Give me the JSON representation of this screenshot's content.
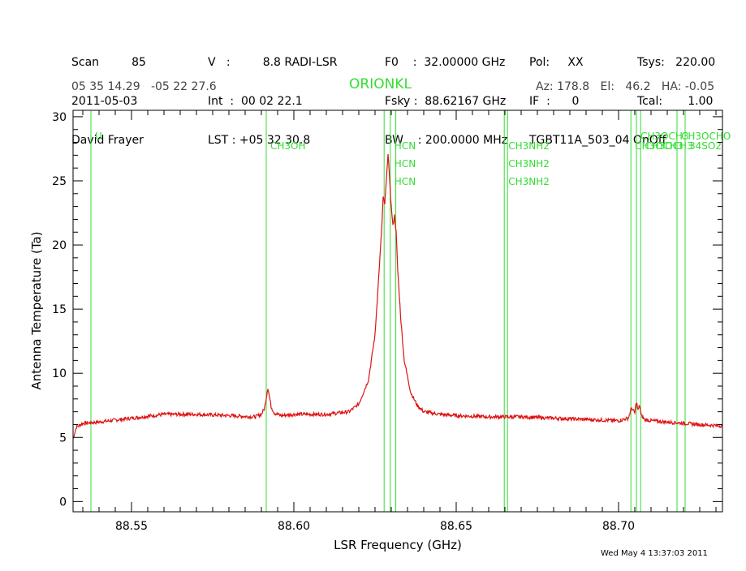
{
  "header": {
    "col1": [
      "Scan         85",
      "2011-05-03",
      "David Frayer"
    ],
    "col2": [
      "V   :         8.8 RADI-LSR",
      "Int  :  00 02 22.1",
      "LST : +05 32 30.8"
    ],
    "col3": [
      "F0    :  32.00000 GHz",
      "Fsky :  88.62167 GHz",
      "BW    : 200.0000 MHz"
    ],
    "col4": [
      "Pol:     XX",
      "IF  :      0",
      "TGBT11A_503_04 OnOff"
    ],
    "col5": [
      "Tsys:   220.00",
      "Tcal:       1.00",
      ""
    ],
    "coords": "05 35 14.29   -05 22 27.6",
    "source": "ORIONKL",
    "azel": "Az: 178.8   El:   46.2   HA: -0.05"
  },
  "footer": {
    "timestamp": "Wed May  4 13:37:03 2011"
  },
  "colors": {
    "spectrum": "#dd1111",
    "lines": "#33dd33",
    "axes": "#000000"
  },
  "chart_data": {
    "type": "line",
    "xlabel": "LSR Frequency (GHz)",
    "ylabel": "Antenna Temperature (Ta)",
    "xlim": [
      88.532,
      88.732
    ],
    "ylim": [
      -0.8,
      30.5
    ],
    "xticks": [
      88.55,
      88.6,
      88.65,
      88.7
    ],
    "xtick_labels": [
      "88.55",
      "88.60",
      "88.65",
      "88.70"
    ],
    "yticks": [
      0,
      5,
      10,
      15,
      20,
      25,
      30
    ],
    "ytick_labels": [
      "0",
      "5",
      "10",
      "15",
      "20",
      "25",
      "30"
    ],
    "series": [
      {
        "x": [
          88.532,
          88.533,
          88.535,
          88.54,
          88.55,
          88.56,
          88.57,
          88.58,
          88.588,
          88.59,
          88.591,
          88.592,
          88.593,
          88.594,
          88.596,
          88.6,
          88.61,
          88.617,
          88.62,
          88.623,
          88.625,
          88.626,
          88.627,
          88.6275,
          88.628,
          88.6285,
          88.629,
          88.6295,
          88.63,
          88.6305,
          88.631,
          88.6315,
          88.632,
          88.633,
          88.634,
          88.636,
          88.638,
          88.64,
          88.645,
          88.65,
          88.66,
          88.67,
          88.68,
          88.69,
          88.7,
          88.703,
          88.704,
          88.705,
          88.7055,
          88.706,
          88.7065,
          88.707,
          88.708,
          88.71,
          88.715,
          88.72,
          88.725,
          88.732
        ],
        "y": [
          4.9,
          5.8,
          6.1,
          6.2,
          6.5,
          6.8,
          6.8,
          6.7,
          6.6,
          6.8,
          7.3,
          8.9,
          7.4,
          6.9,
          6.7,
          6.8,
          6.8,
          7.0,
          7.6,
          9.5,
          13.0,
          17.0,
          21.0,
          23.7,
          23.2,
          25.0,
          27.2,
          25.0,
          23.0,
          21.5,
          22.3,
          21.0,
          18.0,
          14.0,
          11.0,
          8.5,
          7.5,
          7.0,
          6.8,
          6.7,
          6.6,
          6.6,
          6.5,
          6.4,
          6.3,
          6.5,
          7.3,
          6.9,
          7.8,
          7.1,
          7.5,
          6.7,
          6.4,
          6.3,
          6.2,
          6.1,
          6.0,
          5.9
        ]
      }
    ],
    "lines": [
      {
        "x": 88.5375,
        "labels": [
          "U"
        ]
      },
      {
        "x": 88.5915,
        "labels": [
          "CH3OH"
        ]
      },
      {
        "x": 88.6278,
        "labels": []
      },
      {
        "x": 88.6297,
        "labels": [
          "HCN",
          "HCN",
          "HCN"
        ]
      },
      {
        "x": 88.6314,
        "labels": []
      },
      {
        "x": 88.6648,
        "labels": [
          "CH3NH2",
          "CH3NH2",
          "CH3NH2"
        ]
      },
      {
        "x": 88.6658,
        "labels": []
      },
      {
        "x": 88.7038,
        "labels": [
          "CH3OCH3"
        ]
      },
      {
        "x": 88.7055,
        "labels": [
          "CH3OCH3"
        ]
      },
      {
        "x": 88.7068,
        "labels": [
          "CH3OCH3"
        ]
      },
      {
        "x": 88.718,
        "labels": [
          "CH3OCHO"
        ]
      },
      {
        "x": 88.7205,
        "labels": [
          "34SO2"
        ]
      }
    ]
  }
}
